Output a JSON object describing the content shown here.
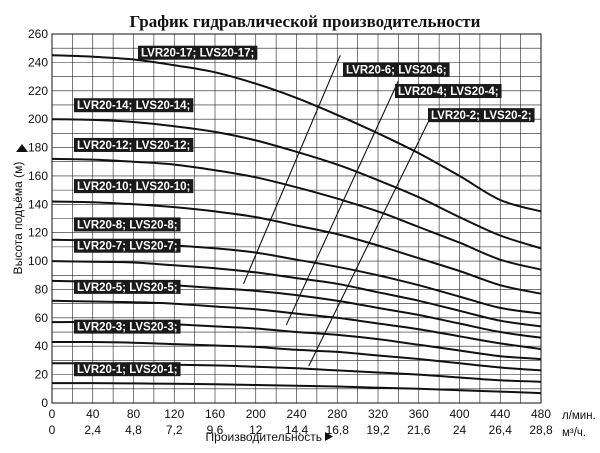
{
  "chart_data": {
    "type": "line",
    "title": "График гидравлической производительности",
    "ylabel": "Высота подъёма (м)",
    "xlabel": "Производительность",
    "x_unit": "л/мин.",
    "x2_unit": "м³/ч.",
    "xlim": [
      0,
      480
    ],
    "ylim": [
      0,
      260
    ],
    "grid": true,
    "x_ticks": [
      0,
      40,
      80,
      120,
      160,
      200,
      240,
      280,
      320,
      360,
      400,
      440,
      480
    ],
    "x2_ticks": [
      "0",
      "2,4",
      "4,8",
      "7,2",
      "9,6",
      "12",
      "14,4",
      "16,8",
      "19,2",
      "21,6",
      "24",
      "26,4",
      "28,8"
    ],
    "y_ticks": [
      0,
      20,
      40,
      60,
      80,
      100,
      120,
      140,
      160,
      180,
      200,
      220,
      240,
      260
    ],
    "x": [
      0,
      40,
      80,
      120,
      160,
      200,
      240,
      280,
      320,
      360,
      400,
      440,
      480
    ],
    "series": [
      {
        "name": "LVR20-17; LVS20-17;",
        "values": [
          245,
          244,
          242,
          238,
          233,
          225,
          215,
          203,
          190,
          176,
          160,
          143,
          135
        ]
      },
      {
        "name": "LVR20-14; LVS20-14;",
        "values": [
          200,
          199.5,
          198,
          195,
          191,
          185,
          177,
          168,
          157,
          145,
          131,
          118,
          109
        ]
      },
      {
        "name": "LVR20-12; LVS20-12;",
        "values": [
          172,
          171.5,
          170,
          168,
          164,
          159,
          152,
          144,
          135,
          124,
          113,
          101,
          94
        ]
      },
      {
        "name": "LVR20-10; LVS20-10;",
        "values": [
          142,
          141.5,
          140,
          138,
          135,
          131,
          125,
          119,
          111,
          102,
          93,
          83,
          77
        ]
      },
      {
        "name": "LVR20-8; LVS20-8;",
        "values": [
          115,
          114.5,
          113,
          111,
          109,
          106,
          101,
          96,
          90,
          83,
          75,
          67,
          63
        ]
      },
      {
        "name": "LVR20-7; LVS20-7;",
        "values": [
          100,
          99.5,
          99,
          97,
          95,
          92,
          88,
          84,
          78,
          72,
          65,
          58,
          54
        ]
      },
      {
        "name": "LVR20-6; LVS20-6;",
        "values": [
          86,
          85.5,
          85,
          83,
          81,
          79,
          76,
          72,
          67,
          62,
          56,
          50,
          46
        ]
      },
      {
        "name": "LVR20-5; LVS20-5;",
        "values": [
          72,
          71.5,
          71,
          70,
          68,
          66,
          63,
          60,
          56,
          52,
          47,
          42,
          38
        ]
      },
      {
        "name": "LVR20-4; LVS20-4;",
        "values": [
          57,
          57,
          56.5,
          55.5,
          54,
          52.5,
          50,
          48,
          45,
          41,
          37,
          33,
          31
        ]
      },
      {
        "name": "LVR20-3; LVS20-3;",
        "values": [
          43,
          43,
          42.5,
          41.5,
          40.5,
          39.5,
          37.5,
          36,
          33.5,
          31,
          28,
          25,
          23
        ]
      },
      {
        "name": "LVR20-2; LVS20-2;",
        "values": [
          28,
          28,
          27.5,
          27,
          26.5,
          25.5,
          24.5,
          23,
          21.5,
          20,
          18,
          16,
          15
        ]
      },
      {
        "name": "LVR20-1; LVS20-1;",
        "values": [
          14,
          14,
          13.8,
          13.5,
          13.2,
          12.7,
          12.2,
          11.6,
          10.8,
          10,
          9,
          8,
          7
        ]
      }
    ],
    "guide_lines": [
      {
        "name": "LVR20-6; LVS20-6;",
        "from": [
          188,
          84
        ],
        "to": [
          283,
          245
        ]
      },
      {
        "name": "LVR20-4; LVS20-4;",
        "from": [
          230,
          55
        ],
        "to": [
          340,
          227
        ]
      },
      {
        "name": "LVR20-2; LVS20-2;",
        "from": [
          252,
          26
        ],
        "to": [
          372,
          202
        ]
      }
    ]
  }
}
